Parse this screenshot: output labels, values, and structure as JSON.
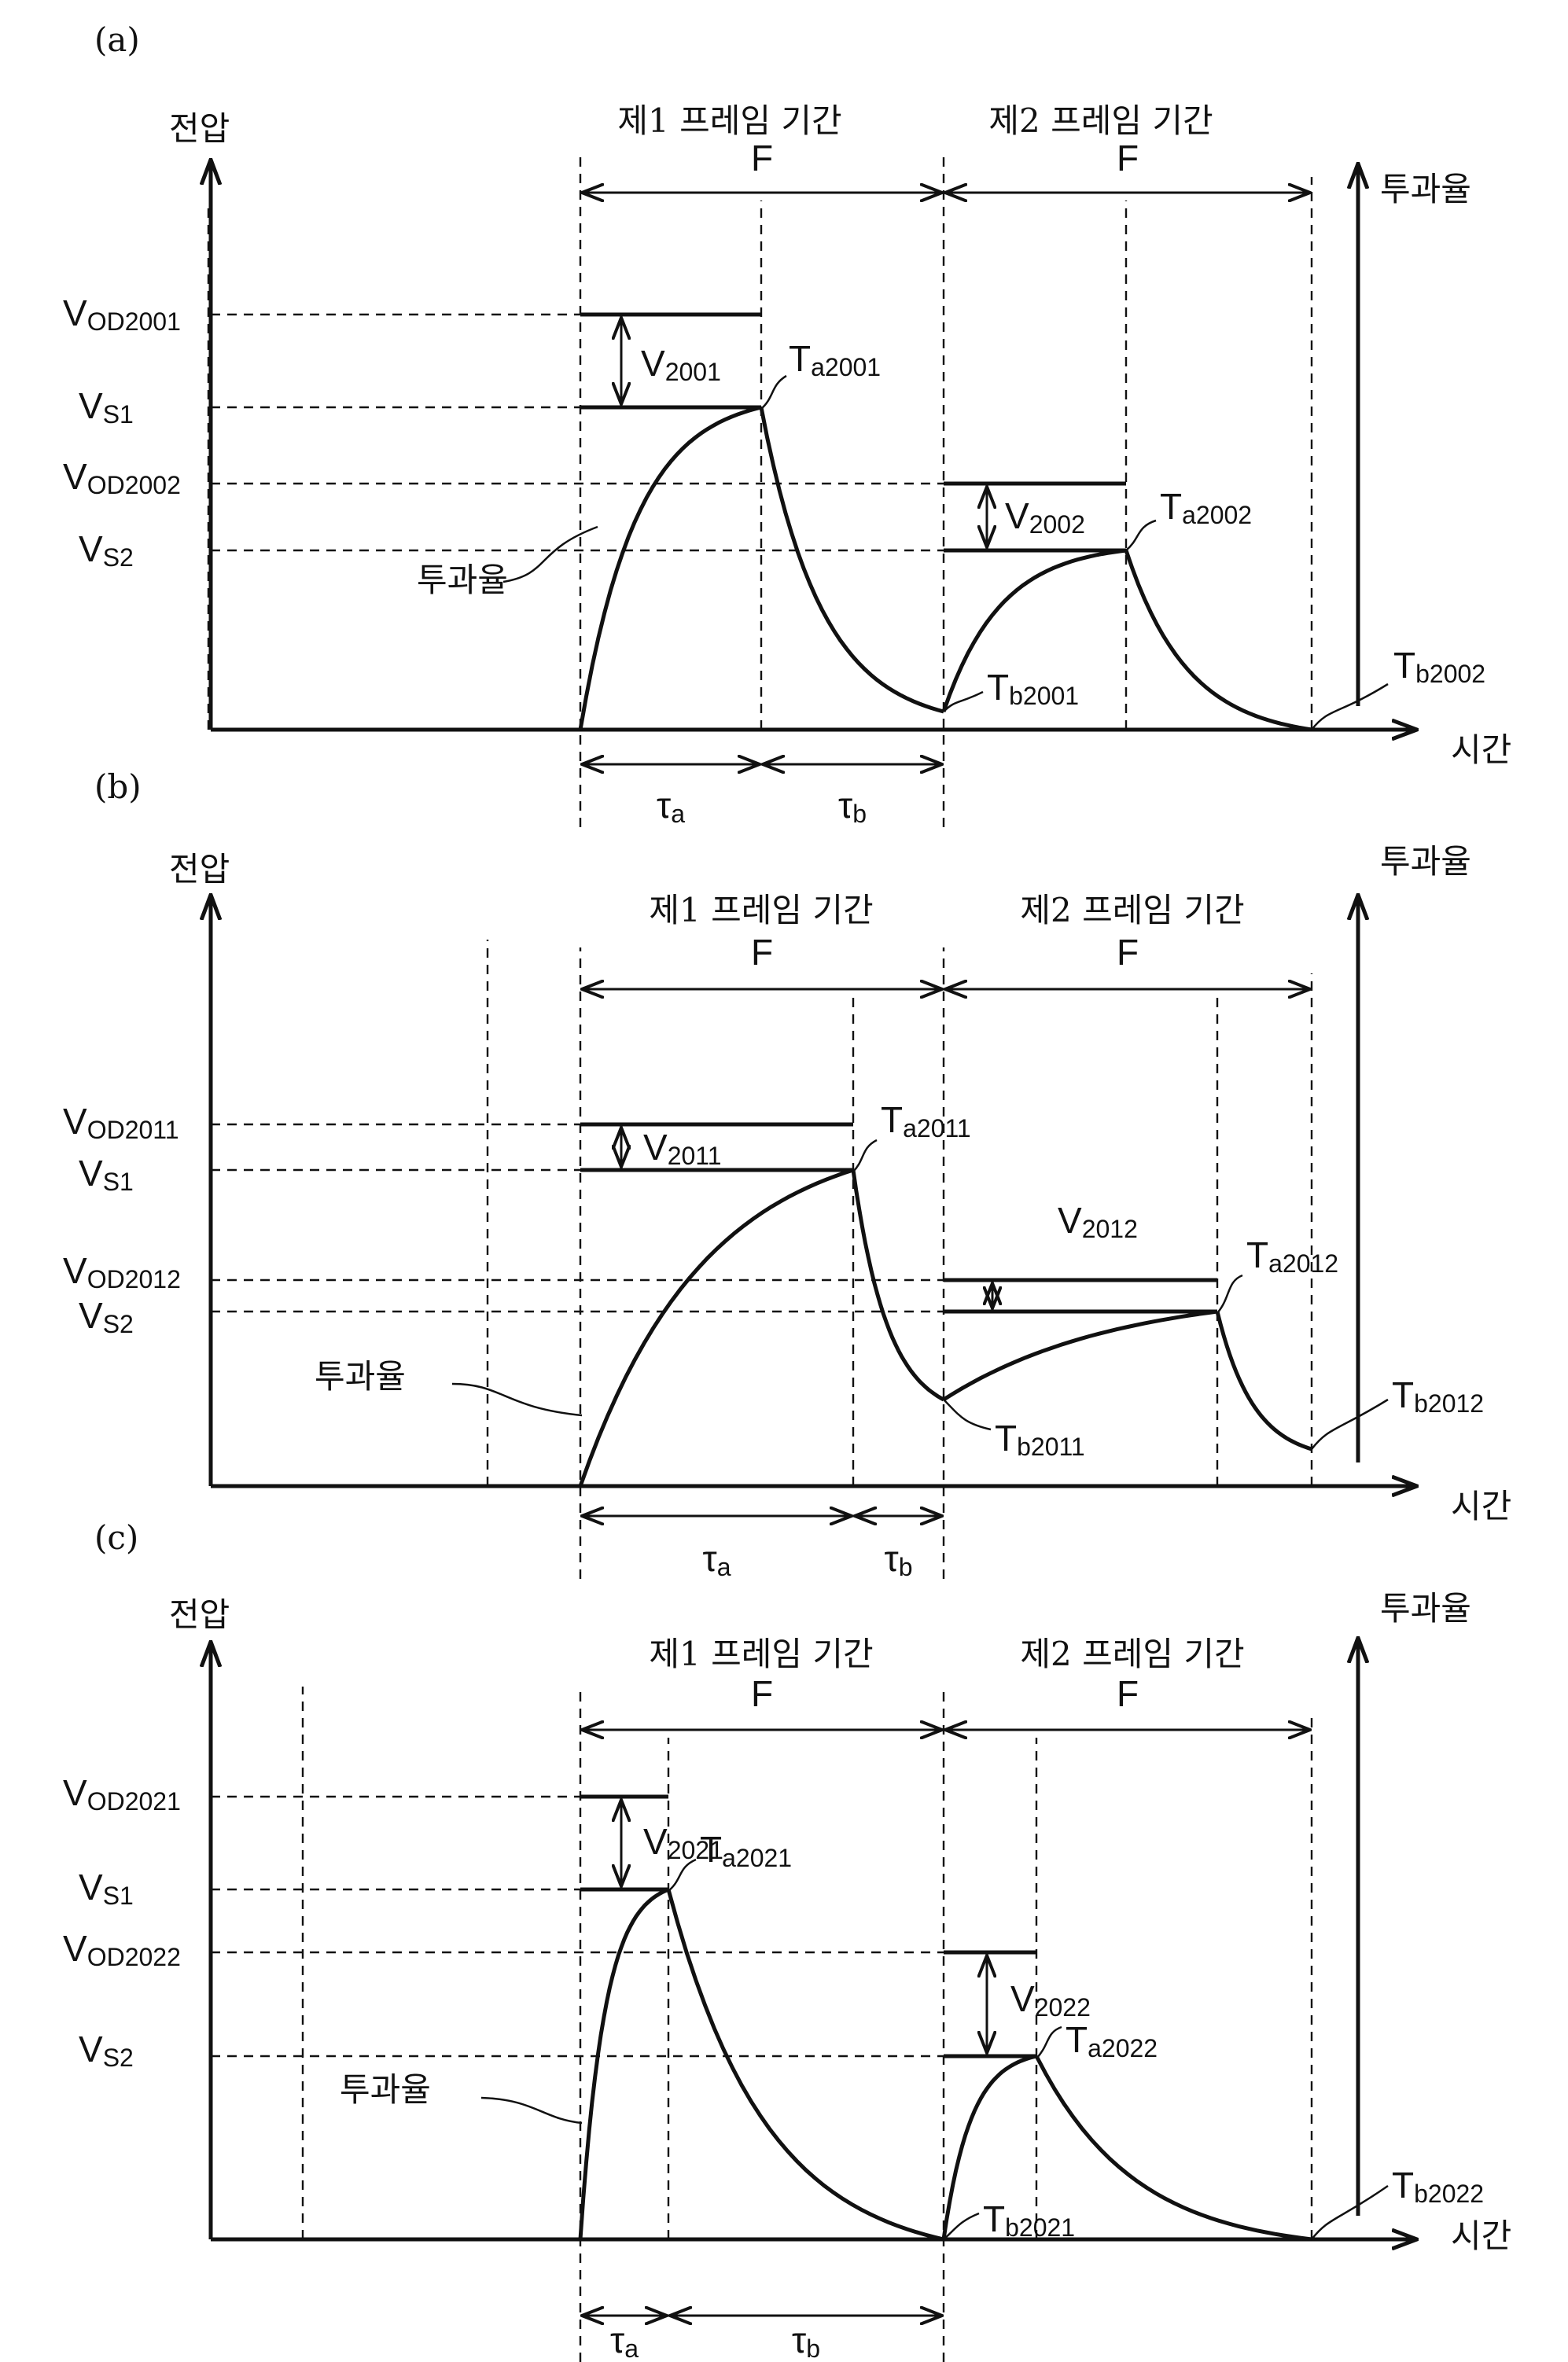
{
  "panels": [
    {
      "id": "a",
      "label": "(a)",
      "y_axis": "전압",
      "x_axis": "시간",
      "right_axis": "투과율",
      "frame1": "제1 프레임 기간",
      "frame2": "제2 프레임 기간",
      "f1": "F",
      "f2": "F",
      "vod1": {
        "main": "V",
        "sub": "OD2001"
      },
      "vs1": {
        "main": "V",
        "sub": "S1"
      },
      "vod2": {
        "main": "V",
        "sub": "OD2002"
      },
      "vs2": {
        "main": "V",
        "sub": "S2"
      },
      "dv1": {
        "main": "V",
        "sub": "2001"
      },
      "dv2": {
        "main": "V",
        "sub": "2002"
      },
      "ta1": {
        "main": "T",
        "sub": "a2001"
      },
      "ta2": {
        "main": "T",
        "sub": "a2002"
      },
      "tb1": {
        "main": "T",
        "sub": "b2001"
      },
      "tb2": {
        "main": "T",
        "sub": "b2002"
      },
      "trans": "투과율",
      "tau_a": {
        "main": "τ",
        "sub": "a"
      },
      "tau_b": {
        "main": "τ",
        "sub": "b"
      }
    },
    {
      "id": "b",
      "label": "(b)",
      "y_axis": "전압",
      "x_axis": "시간",
      "right_axis": "투과율",
      "frame1": "제1 프레임 기간",
      "frame2": "제2 프레임 기간",
      "f1": "F",
      "f2": "F",
      "vod1": {
        "main": "V",
        "sub": "OD2011"
      },
      "vs1": {
        "main": "V",
        "sub": "S1"
      },
      "vod2": {
        "main": "V",
        "sub": "OD2012"
      },
      "vs2": {
        "main": "V",
        "sub": "S2"
      },
      "dv1": {
        "main": "V",
        "sub": "2011"
      },
      "dv2": {
        "main": "V",
        "sub": "2012"
      },
      "ta1": {
        "main": "T",
        "sub": "a2011"
      },
      "ta2": {
        "main": "T",
        "sub": "a2012"
      },
      "tb1": {
        "main": "T",
        "sub": "b2011"
      },
      "tb2": {
        "main": "T",
        "sub": "b2012"
      },
      "trans": "투과율",
      "tau_a": {
        "main": "τ",
        "sub": "a"
      },
      "tau_b": {
        "main": "τ",
        "sub": "b"
      }
    },
    {
      "id": "c",
      "label": "(c)",
      "y_axis": "전압",
      "x_axis": "시간",
      "right_axis": "투과율",
      "frame1": "제1 프레임 기간",
      "frame2": "제2 프레임 기간",
      "f1": "F",
      "f2": "F",
      "vod1": {
        "main": "V",
        "sub": "OD2021"
      },
      "vs1": {
        "main": "V",
        "sub": "S1"
      },
      "vod2": {
        "main": "V",
        "sub": "OD2022"
      },
      "vs2": {
        "main": "V",
        "sub": "S2"
      },
      "dv1": {
        "main": "V",
        "sub": "2021"
      },
      "dv2": {
        "main": "V",
        "sub": "2022"
      },
      "ta1": {
        "main": "T",
        "sub": "a2021"
      },
      "ta2": {
        "main": "T",
        "sub": "a2022"
      },
      "tb1": {
        "main": "T",
        "sub": "b2021"
      },
      "tb2": {
        "main": "T",
        "sub": "b2022"
      },
      "trans": "투과율",
      "tau_a": {
        "main": "τ",
        "sub": "a"
      },
      "tau_b": {
        "main": "τ",
        "sub": "b"
      }
    }
  ]
}
